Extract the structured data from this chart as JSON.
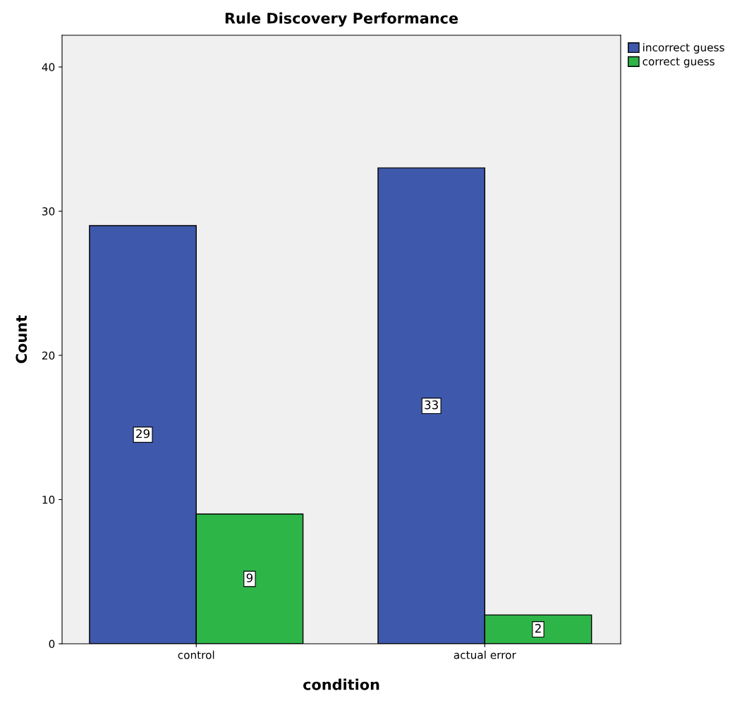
{
  "chart_data": {
    "type": "bar",
    "title": "Rule Discovery Performance",
    "xlabel": "condition",
    "ylabel": "Count",
    "categories": [
      "control",
      "actual error"
    ],
    "series": [
      {
        "name": "incorrect guess",
        "color": "#3e58ac",
        "values": [
          29,
          33
        ]
      },
      {
        "name": "correct guess",
        "color": "#2eb548",
        "values": [
          9,
          2
        ]
      }
    ],
    "ylim": [
      0,
      42.2
    ],
    "yticks": [
      0,
      10,
      20,
      30,
      40
    ],
    "data_labels": true,
    "grid": false,
    "legend": "top right"
  }
}
